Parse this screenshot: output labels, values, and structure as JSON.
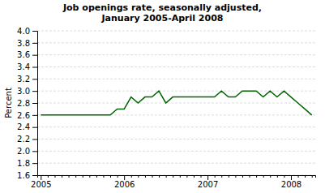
{
  "chart_data": {
    "type": "line",
    "title": "Job openings rate, seasonally adjusted,\nJanuary 2005-April 2008",
    "ylabel": "Percent",
    "categories": [
      "2005",
      null,
      null,
      null,
      null,
      null,
      null,
      null,
      null,
      null,
      null,
      null,
      "2006",
      null,
      null,
      null,
      null,
      null,
      null,
      null,
      null,
      null,
      null,
      null,
      "2007",
      null,
      null,
      null,
      null,
      null,
      null,
      null,
      null,
      null,
      null,
      null,
      "2008",
      null,
      null,
      null
    ],
    "values": [
      2.6,
      2.6,
      2.6,
      2.6,
      2.6,
      2.6,
      2.6,
      2.6,
      2.6,
      2.6,
      2.6,
      2.7,
      2.7,
      2.9,
      2.8,
      2.9,
      2.9,
      3.0,
      2.8,
      2.9,
      2.9,
      2.9,
      2.9,
      2.9,
      2.9,
      2.9,
      3.0,
      2.9,
      2.9,
      3.0,
      3.0,
      3.0,
      2.9,
      3.0,
      2.9,
      3.0,
      2.9,
      2.8,
      2.7,
      2.6
    ],
    "color": "#006600",
    "ylim": [
      1.6,
      4.0
    ],
    "yticks": [
      1.6,
      1.8,
      {
        "value": 2.0,
        "label": "2.0"
      },
      2.2,
      2.4,
      2.6,
      2.8,
      {
        "value": 3.0,
        "label": "3.0"
      },
      3.2,
      3.4,
      3.6,
      3.8,
      {
        "value": 4.0,
        "label": "4.0"
      }
    ],
    "grid": true
  }
}
